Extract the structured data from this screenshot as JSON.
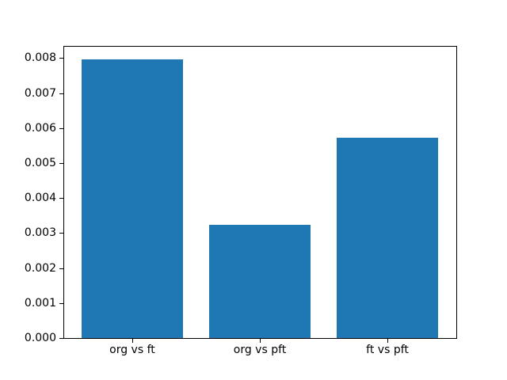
{
  "chart_data": {
    "type": "bar",
    "title": "",
    "xlabel": "",
    "ylabel": "",
    "categories": [
      "org vs ft",
      "org vs pft",
      "ft vs pft"
    ],
    "values": [
      0.00797,
      0.00323,
      0.00572
    ],
    "bar_color": "#1f77b4",
    "ylim": [
      0,
      0.008348
    ],
    "ytick_step": 0.001,
    "ytick_labels": [
      "0.000",
      "0.001",
      "0.002",
      "0.003",
      "0.004",
      "0.005",
      "0.006",
      "0.007",
      "0.008"
    ],
    "xlim": [
      -0.54,
      2.54
    ],
    "bar_width_data_units": 0.8,
    "grid": false,
    "legend": null,
    "background_color": "#ffffff",
    "spine_color": "#000000"
  }
}
